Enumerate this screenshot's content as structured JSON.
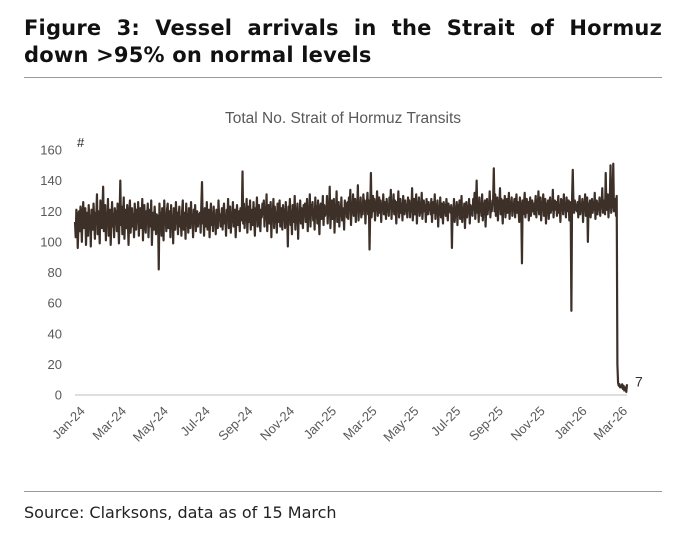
{
  "figure": {
    "title": "Figure 3: Vessel arrivals in the Strait of Hormuz down >95% on normal levels",
    "source": "Source: Clarksons, data as of 15 March"
  },
  "colors": {
    "line": "#3d3028",
    "axis": "#bfbfbf",
    "text": "#595959",
    "rule": "#9a9a9a"
  },
  "chart_data": {
    "type": "line",
    "title": "Total No. Strait of Hormuz Transits",
    "ylabel": "#",
    "ylim": [
      0,
      160
    ],
    "yticks": [
      0,
      20,
      40,
      60,
      80,
      100,
      120,
      140,
      160
    ],
    "grid": false,
    "legend": "none",
    "xticks": [
      "Jan-24",
      "Mar-24",
      "May-24",
      "Jul-24",
      "Sep-24",
      "Nov-24",
      "Jan-25",
      "Mar-25",
      "May-25",
      "Jul-25",
      "Sep-25",
      "Nov-25",
      "Jan-26",
      "Mar-26"
    ],
    "series": [
      {
        "x_start": "2024-01-01",
        "x_end": "2026-03-15",
        "frequency": "daily",
        "typical_range": [
          95,
          145
        ],
        "values_by_month": {
          "Jan-24": [
            113,
            103,
            121,
            118,
            96,
            111,
            120,
            107,
            123,
            115,
            100,
            118,
            126,
            109,
            115,
            122,
            98,
            113,
            119,
            104,
            124,
            110,
            117,
            97,
            121,
            112,
            108,
            125,
            114,
            102,
            119
          ],
          "Feb-24": [
            116,
            131,
            105,
            120,
            113,
            99,
            127,
            118,
            109,
            122,
            136,
            107,
            115,
            124,
            101,
            119,
            111,
            128,
            104,
            117,
            121,
            98,
            113,
            126,
            110,
            118,
            103,
            122,
            115
          ],
          "Mar-24": [
            120,
            107,
            125,
            114,
            99,
            118,
            140,
            111,
            123,
            105,
            117,
            129,
            102,
            116,
            121,
            109,
            124,
            113,
            98,
            119,
            127,
            106,
            115,
            122,
            110,
            118,
            103,
            125,
            116,
            108,
            121
          ],
          "Apr-24": [
            113,
            126,
            104,
            118,
            122,
            109,
            115,
            128,
            101,
            119,
            124,
            111,
            106,
            120,
            116,
            125,
            103,
            117,
            121,
            110,
            127,
            98,
            114,
            119,
            108,
            123,
            113,
            105,
            118,
            112
          ],
          "May-24": [
            117,
            82,
            125,
            110,
            119,
            104,
            122,
            115,
            101,
            127,
            113,
            118,
            107,
            121,
            125,
            109,
            116,
            120,
            103,
            124,
            111,
            117,
            99,
            122,
            114,
            108,
            126,
            112,
            119,
            105,
            118
          ],
          "Jun-24": [
            123,
            110,
            116,
            104,
            120,
            127,
            108,
            114,
            119,
            102,
            125,
            111,
            118,
            106,
            122,
            115,
            109,
            126,
            113,
            117,
            103,
            121,
            112,
            124,
            107,
            116,
            120,
            110,
            118,
            114
          ],
          "Jul-24": [
            119,
            106,
            124,
            139,
            112,
            117,
            104,
            122,
            115,
            110,
            126,
            108,
            118,
            121,
            103,
            116,
            125,
            111,
            119,
            107,
            123,
            114,
            117,
            105,
            121,
            113,
            109,
            127,
            115,
            118,
            110
          ],
          "Aug-24": [
            116,
            122,
            108,
            119,
            125,
            112,
            117,
            104,
            121,
            114,
            128,
            109,
            116,
            123,
            106,
            119,
            113,
            126,
            110,
            118,
            121,
            103,
            115,
            124,
            111,
            117,
            120,
            107,
            122,
            114,
            119
          ],
          "Sep-24": [
            146,
            112,
            125,
            109,
            120,
            117,
            128,
            106,
            119,
            123,
            113,
            127,
            108,
            118,
            121,
            111,
            126,
            115,
            104,
            122,
            117,
            129,
            110,
            119,
            124,
            113,
            107,
            121,
            116,
            125
          ],
          "Oct-24": [
            118,
            127,
            110,
            122,
            115,
            131,
            107,
            120,
            124,
            112,
            118,
            126,
            103,
            121,
            117,
            128,
            109,
            123,
            115,
            119,
            106,
            125,
            113,
            120,
            127,
            110,
            118,
            122,
            108,
            124,
            116
          ],
          "Nov-24": [
            121,
            109,
            126,
            114,
            119,
            97,
            123,
            116,
            128,
            111,
            120,
            105,
            124,
            117,
            113,
            130,
            108,
            121,
            118,
            125,
            102,
            119,
            115,
            127,
            112,
            122,
            116,
            109,
            124,
            118
          ],
          "Dec-24": [
            125,
            113,
            120,
            128,
            107,
            122,
            117,
            131,
            110,
            124,
            119,
            126,
            114,
            121,
            108,
            129,
            116,
            123,
            112,
            127,
            118,
            105,
            122,
            125,
            115,
            120,
            130,
            111,
            124,
            117,
            121
          ],
          "Jan-25": [
            118,
            130,
            112,
            124,
            119,
            136,
            109,
            122,
            127,
            115,
            121,
            128,
            106,
            124,
            118,
            133,
            113,
            120,
            126,
            110,
            123,
            117,
            129,
            114,
            122,
            119,
            108,
            127,
            120,
            125,
            116
          ],
          "Feb-25": [
            126,
            115,
            129,
            121,
            134,
            111,
            124,
            119,
            131,
            117,
            123,
            128,
            113,
            126,
            121,
            137,
            114,
            125,
            120,
            129,
            116,
            123,
            118,
            131,
            122,
            127,
            112,
            124
          ],
          "Mar-25": [
            124,
            132,
            118,
            127,
            95,
            121,
            145,
            116,
            125,
            130,
            120,
            128,
            114,
            126,
            122,
            133,
            117,
            124,
            129,
            119,
            127,
            113,
            125,
            121,
            131,
            118,
            126,
            123,
            115,
            128,
            120
          ],
          "Apr-25": [
            124,
            117,
            129,
            122,
            134,
            115,
            125,
            120,
            131,
            118,
            127,
            123,
            112,
            126,
            121,
            133,
            116,
            124,
            128,
            119,
            125,
            114,
            130,
            122,
            118,
            127,
            120,
            124,
            116,
            129
          ],
          "May-25": [
            121,
            127,
            116,
            125,
            120,
            135,
            114,
            123,
            128,
            118,
            124,
            131,
            112,
            126,
            121,
            129,
            117,
            125,
            119,
            132,
            115,
            123,
            127,
            120,
            124,
            113,
            128,
            122,
            118,
            126,
            121
          ],
          "Jun-25": [
            124,
            118,
            128,
            113,
            122,
            126,
            119,
            131,
            115,
            124,
            121,
            127,
            110,
            123,
            118,
            129,
            116,
            125,
            120,
            112,
            126,
            119,
            124,
            117,
            128,
            121,
            114,
            125,
            120,
            123
          ],
          "Jul-25": [
            119,
            124,
            96,
            122,
            116,
            128,
            113,
            121,
            119,
            126,
            111,
            124,
            118,
            127,
            115,
            120,
            130,
            113,
            122,
            117,
            125,
            109,
            121,
            126,
            116,
            123,
            119,
            128,
            112,
            124,
            118
          ],
          "Aug-25": [
            123,
            117,
            128,
            121,
            132,
            115,
            124,
            140,
            119,
            126,
            113,
            129,
            120,
            124,
            117,
            131,
            114,
            125,
            121,
            127,
            110,
            123,
            128,
            118,
            125,
            122,
            133,
            116,
            124,
            120,
            127
          ],
          "Sep-25": [
            127,
            148,
            120,
            131,
            117,
            125,
            129,
            114,
            126,
            122,
            135,
            118,
            128,
            123,
            112,
            127,
            121,
            130,
            116,
            125,
            128,
            119,
            124,
            132,
            115,
            126,
            121,
            129,
            117,
            124
          ],
          "Oct-25": [
            122,
            128,
            116,
            125,
            131,
            119,
            126,
            121,
            113,
            129,
            124,
            120,
            86,
            127,
            118,
            125,
            132,
            116,
            123,
            128,
            119,
            126,
            114,
            124,
            129,
            117,
            122,
            127,
            120,
            125,
            118
          ],
          "Nov-25": [
            124,
            130,
            116,
            127,
            121,
            133,
            118,
            125,
            129,
            114,
            126,
            122,
            131,
            117,
            124,
            128,
            112,
            125,
            120,
            127,
            115,
            123,
            129,
            119,
            126,
            121,
            134,
            116,
            124,
            127
          ],
          "Dec-25": [
            121,
            126,
            117,
            125,
            130,
            119,
            124,
            113,
            128,
            122,
            127,
            118,
            131,
            121,
            125,
            116,
            129,
            120,
            123,
            127,
            114,
            126,
            122,
            55,
            128,
            147,
            125,
            119,
            127,
            121,
            124
          ],
          "Jan-26": [
            120,
            126,
            116,
            124,
            130,
            118,
            125,
            121,
            128,
            113,
            126,
            122,
            131,
            117,
            124,
            129,
            100,
            125,
            120,
            127,
            116,
            123,
            128,
            119,
            126,
            121,
            132,
            115,
            124,
            127,
            118
          ],
          "Feb-26": [
            125,
            121,
            129,
            117,
            126,
            123,
            135,
            119,
            127,
            122,
            118,
            145,
            121,
            126,
            131,
            116,
            125,
            128,
            150,
            119,
            124,
            129,
            151,
            120,
            126,
            128,
            117,
            130
          ],
          "Mar-26": [
            20,
            8,
            6,
            7,
            5,
            6,
            5,
            7,
            4,
            6,
            3,
            5,
            4,
            2,
            7
          ]
        },
        "low_points": [
          {
            "date": "2024-05-02",
            "value": 82
          },
          {
            "date": "2025-10-13",
            "value": 86
          },
          {
            "date": "2025-12-24",
            "value": 55
          },
          {
            "date": "2026-03-15",
            "value": 7
          }
        ],
        "last_value": 7
      }
    ],
    "annotations": [
      {
        "text": "7",
        "x": "2026-03-15",
        "y": 7
      }
    ]
  }
}
